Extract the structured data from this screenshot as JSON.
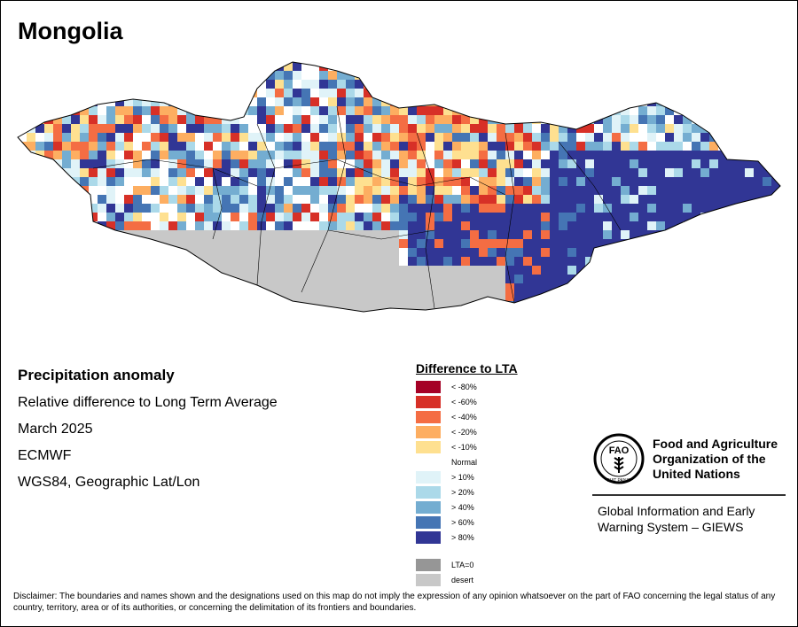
{
  "title": "Mongolia",
  "info": {
    "heading": "Precipitation anomaly",
    "line1": "Relative difference to Long Term Average",
    "line2": "March 2025",
    "line3": "ECMWF",
    "line4": "WGS84, Geographic Lat/Lon"
  },
  "legend": {
    "title": "Difference to LTA",
    "dry": [
      {
        "label": "< -80%",
        "color": "#a50026"
      },
      {
        "label": "< -60%",
        "color": "#d73027"
      },
      {
        "label": "< -40%",
        "color": "#f46d43"
      },
      {
        "label": "< -20%",
        "color": "#fdae61"
      },
      {
        "label": "< -10%",
        "color": "#fee090"
      }
    ],
    "normal": "Normal",
    "wet": [
      {
        "label": "> 10%",
        "color": "#e0f3f8"
      },
      {
        "label": "> 20%",
        "color": "#abd9e9"
      },
      {
        "label": "> 40%",
        "color": "#74add1"
      },
      {
        "label": "> 60%",
        "color": "#4575b4"
      },
      {
        "label": "> 80%",
        "color": "#313695"
      }
    ],
    "lta0": {
      "label": "LTA=0",
      "color": "#969696"
    },
    "desert": {
      "label": "desert",
      "color": "#c8c8c8"
    }
  },
  "fao": {
    "logo_text": "FAO",
    "logo_motto": "FIAT PANIS",
    "name1": "Food and Agriculture",
    "name2": "Organization of the",
    "name3": "United Nations",
    "giews1": "Global Information and Early",
    "giews2": "Warning System – GIEWS"
  },
  "disclaimer": "Disclaimer: The boundaries and names shown and the designations used on this map do not imply the expression of any opinion whatsoever on the part of FAO concerning the legal status of any country, territory, area or of its authorities, or concerning the delimitation of its frontiers and boundaries."
}
